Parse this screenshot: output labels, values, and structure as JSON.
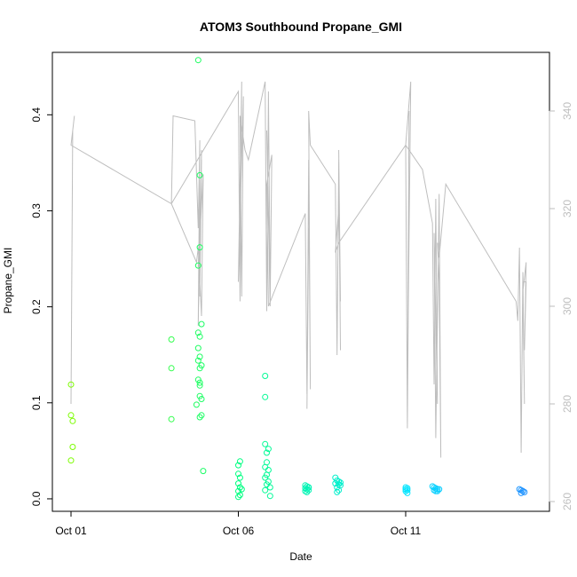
{
  "chart_data": {
    "type": "scatter",
    "title": "ATOM3 Southbound Propane_GMI",
    "xlabel": "Date",
    "ylabel": "Propane_GMI",
    "x_ticks": [
      "Oct 01",
      "Oct 06",
      "Oct 11"
    ],
    "x_tick_values": [
      0,
      5,
      10
    ],
    "x_range": [
      0,
      13.7
    ],
    "ylim": [
      -0.013,
      0.465
    ],
    "y_ticks": [
      "0.0",
      "0.1",
      "0.2",
      "0.3",
      "0.4"
    ],
    "y_tick_values": [
      0.0,
      0.1,
      0.2,
      0.3,
      0.4
    ],
    "y2lim": [
      258,
      352
    ],
    "y2_ticks": [
      "260",
      "280",
      "300",
      "320",
      "340"
    ],
    "y2_tick_values": [
      260,
      280,
      300,
      320,
      340
    ],
    "grid": false,
    "legend": "none",
    "colors": {
      "secondary_line": "#bebebe",
      "axis": "#000000",
      "right_axis": "#bebebe",
      "point_start": "#7CFC00",
      "point_mid": "#00FF80",
      "point_late": "#00E5FF",
      "point_end": "#1E90FF"
    },
    "series": [
      {
        "type": "points",
        "points": [
          [
            0.0,
            0.119
          ],
          [
            0.0,
            0.087
          ],
          [
            0.05,
            0.081
          ],
          [
            0.05,
            0.054
          ],
          [
            0.0,
            0.04
          ],
          [
            3.0,
            0.166
          ],
          [
            3.0,
            0.136
          ],
          [
            3.0,
            0.083
          ],
          [
            3.8,
            0.457
          ],
          [
            3.85,
            0.337
          ],
          [
            3.85,
            0.262
          ],
          [
            3.8,
            0.243
          ],
          [
            3.9,
            0.182
          ],
          [
            3.8,
            0.173
          ],
          [
            3.85,
            0.169
          ],
          [
            3.8,
            0.157
          ],
          [
            3.85,
            0.148
          ],
          [
            3.8,
            0.144
          ],
          [
            3.9,
            0.139
          ],
          [
            3.85,
            0.136
          ],
          [
            3.8,
            0.124
          ],
          [
            3.85,
            0.121
          ],
          [
            3.85,
            0.118
          ],
          [
            3.85,
            0.107
          ],
          [
            3.9,
            0.104
          ],
          [
            3.75,
            0.098
          ],
          [
            3.9,
            0.087
          ],
          [
            3.85,
            0.085
          ],
          [
            3.95,
            0.029
          ],
          [
            5.05,
            0.039
          ],
          [
            5.0,
            0.035
          ],
          [
            5.0,
            0.026
          ],
          [
            5.05,
            0.022
          ],
          [
            5.0,
            0.016
          ],
          [
            5.05,
            0.012
          ],
          [
            5.1,
            0.01
          ],
          [
            5.0,
            0.008
          ],
          [
            5.05,
            0.004
          ],
          [
            5.0,
            0.002
          ],
          [
            5.8,
            0.128
          ],
          [
            5.8,
            0.106
          ],
          [
            5.8,
            0.057
          ],
          [
            5.9,
            0.052
          ],
          [
            5.85,
            0.048
          ],
          [
            5.85,
            0.038
          ],
          [
            5.8,
            0.033
          ],
          [
            5.9,
            0.03
          ],
          [
            5.85,
            0.025
          ],
          [
            5.8,
            0.022
          ],
          [
            5.9,
            0.018
          ],
          [
            5.85,
            0.015
          ],
          [
            5.95,
            0.012
          ],
          [
            5.8,
            0.009
          ],
          [
            5.95,
            0.003
          ],
          [
            7.0,
            0.014
          ],
          [
            7.05,
            0.013
          ],
          [
            7.1,
            0.012
          ],
          [
            7.0,
            0.011
          ],
          [
            7.05,
            0.01
          ],
          [
            7.1,
            0.009
          ],
          [
            7.0,
            0.008
          ],
          [
            7.05,
            0.007
          ],
          [
            7.1,
            0.012
          ],
          [
            7.9,
            0.022
          ],
          [
            7.95,
            0.019
          ],
          [
            8.0,
            0.018
          ],
          [
            8.05,
            0.017
          ],
          [
            7.9,
            0.016
          ],
          [
            8.0,
            0.015
          ],
          [
            8.05,
            0.014
          ],
          [
            7.95,
            0.012
          ],
          [
            8.0,
            0.009
          ],
          [
            7.95,
            0.007
          ],
          [
            10.0,
            0.012
          ],
          [
            10.05,
            0.011
          ],
          [
            10.0,
            0.01
          ],
          [
            10.05,
            0.009
          ],
          [
            10.0,
            0.008
          ],
          [
            10.05,
            0.006
          ],
          [
            10.8,
            0.013
          ],
          [
            10.85,
            0.012
          ],
          [
            10.9,
            0.011
          ],
          [
            10.95,
            0.01
          ],
          [
            10.85,
            0.009
          ],
          [
            10.9,
            0.008
          ],
          [
            11.0,
            0.01
          ],
          [
            10.95,
            0.008
          ],
          [
            13.4,
            0.01
          ],
          [
            13.45,
            0.009
          ],
          [
            13.5,
            0.008
          ],
          [
            13.55,
            0.007
          ],
          [
            13.45,
            0.006
          ],
          [
            13.5,
            0.008
          ]
        ]
      },
      {
        "type": "line",
        "axis": "right",
        "points": [
          [
            0.0,
            280
          ],
          [
            0.05,
            336
          ],
          [
            0.1,
            339
          ],
          [
            0.0,
            333
          ],
          [
            3.0,
            321
          ],
          [
            3.05,
            339
          ],
          [
            3.7,
            338
          ],
          [
            3.8,
            316
          ],
          [
            3.85,
            334
          ],
          [
            3.8,
            296
          ],
          [
            3.9,
            332
          ],
          [
            3.85,
            302
          ],
          [
            3.9,
            330
          ],
          [
            3.8,
            308
          ],
          [
            3.95,
            327
          ],
          [
            3.9,
            298
          ],
          [
            3.8,
            312
          ],
          [
            3.75,
            309
          ],
          [
            3.0,
            321
          ],
          [
            5.0,
            344
          ],
          [
            5.05,
            301
          ],
          [
            5.1,
            346
          ],
          [
            5.0,
            305
          ],
          [
            5.15,
            343
          ],
          [
            5.1,
            302
          ],
          [
            5.05,
            339
          ],
          [
            5.2,
            332
          ],
          [
            5.3,
            330
          ],
          [
            5.8,
            346
          ],
          [
            5.85,
            299
          ],
          [
            5.9,
            344
          ],
          [
            5.95,
            304
          ],
          [
            5.85,
            336
          ],
          [
            5.95,
            300
          ],
          [
            6.0,
            331
          ],
          [
            5.85,
            325
          ],
          [
            5.9,
            300
          ],
          [
            7.0,
            319
          ],
          [
            7.05,
            282
          ],
          [
            7.1,
            316
          ],
          [
            7.05,
            279
          ],
          [
            7.1,
            330
          ],
          [
            7.15,
            283
          ],
          [
            7.1,
            340
          ],
          [
            7.15,
            333
          ],
          [
            7.9,
            325
          ],
          [
            7.95,
            290
          ],
          [
            8.0,
            330
          ],
          [
            8.05,
            291
          ],
          [
            8.0,
            332
          ],
          [
            8.05,
            301
          ],
          [
            8.0,
            320
          ],
          [
            7.9,
            311
          ],
          [
            8.0,
            313
          ],
          [
            10.0,
            333
          ],
          [
            10.05,
            276
          ],
          [
            10.1,
            340
          ],
          [
            10.05,
            275
          ],
          [
            10.1,
            320
          ],
          [
            10.05,
            282
          ],
          [
            10.15,
            346
          ],
          [
            10.0,
            333
          ],
          [
            10.5,
            328
          ],
          [
            10.8,
            317
          ],
          [
            10.85,
            284
          ],
          [
            10.9,
            322
          ],
          [
            10.95,
            280
          ],
          [
            10.85,
            315
          ],
          [
            10.9,
            273
          ],
          [
            11.0,
            323
          ],
          [
            11.05,
            269
          ],
          [
            11.0,
            305
          ],
          [
            10.95,
            313
          ],
          [
            11.0,
            310
          ],
          [
            11.2,
            325
          ],
          [
            13.3,
            301
          ],
          [
            13.35,
            297
          ],
          [
            13.4,
            312
          ],
          [
            13.45,
            270
          ],
          [
            13.5,
            307
          ],
          [
            13.55,
            280
          ],
          [
            13.5,
            303
          ],
          [
            13.6,
            309
          ],
          [
            13.55,
            291
          ],
          [
            13.6,
            305
          ],
          [
            13.5,
            305
          ]
        ]
      }
    ]
  }
}
